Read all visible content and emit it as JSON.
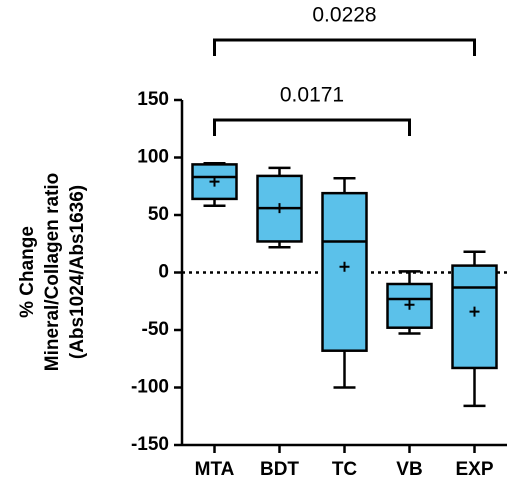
{
  "chart_data": {
    "type": "box",
    "y_label": [
      "% Change",
      "Mineral/Collagen ratio",
      "(Abs1024/Abs1636)"
    ],
    "categories": [
      "MTA",
      "BDT",
      "TC",
      "VB",
      "EXP"
    ],
    "boxes": [
      {
        "min": 58,
        "q1": 64,
        "median": 83,
        "q3": 94,
        "max": 95,
        "mean": 79
      },
      {
        "min": 22,
        "q1": 27,
        "median": 56,
        "q3": 84,
        "max": 91,
        "mean": 56
      },
      {
        "min": -100,
        "q1": -68,
        "median": 27,
        "q3": 69,
        "max": 82,
        "mean": 5
      },
      {
        "min": -53,
        "q1": -48,
        "median": -23,
        "q3": -10,
        "max": 1,
        "mean": -28
      },
      {
        "min": -116,
        "q1": -83,
        "median": -13,
        "q3": 6,
        "max": 18,
        "mean": -34
      }
    ],
    "color": "#5bc1ea",
    "ylim": [
      -150,
      150
    ],
    "yticks": [
      -150,
      -100,
      -50,
      0,
      50,
      100,
      150
    ],
    "reference_line": 0,
    "annotations": [
      {
        "text": "0.0171",
        "between": [
          "MTA",
          "VB"
        ]
      },
      {
        "text": "0.0228",
        "between": [
          "MTA",
          "EXP"
        ]
      }
    ]
  }
}
